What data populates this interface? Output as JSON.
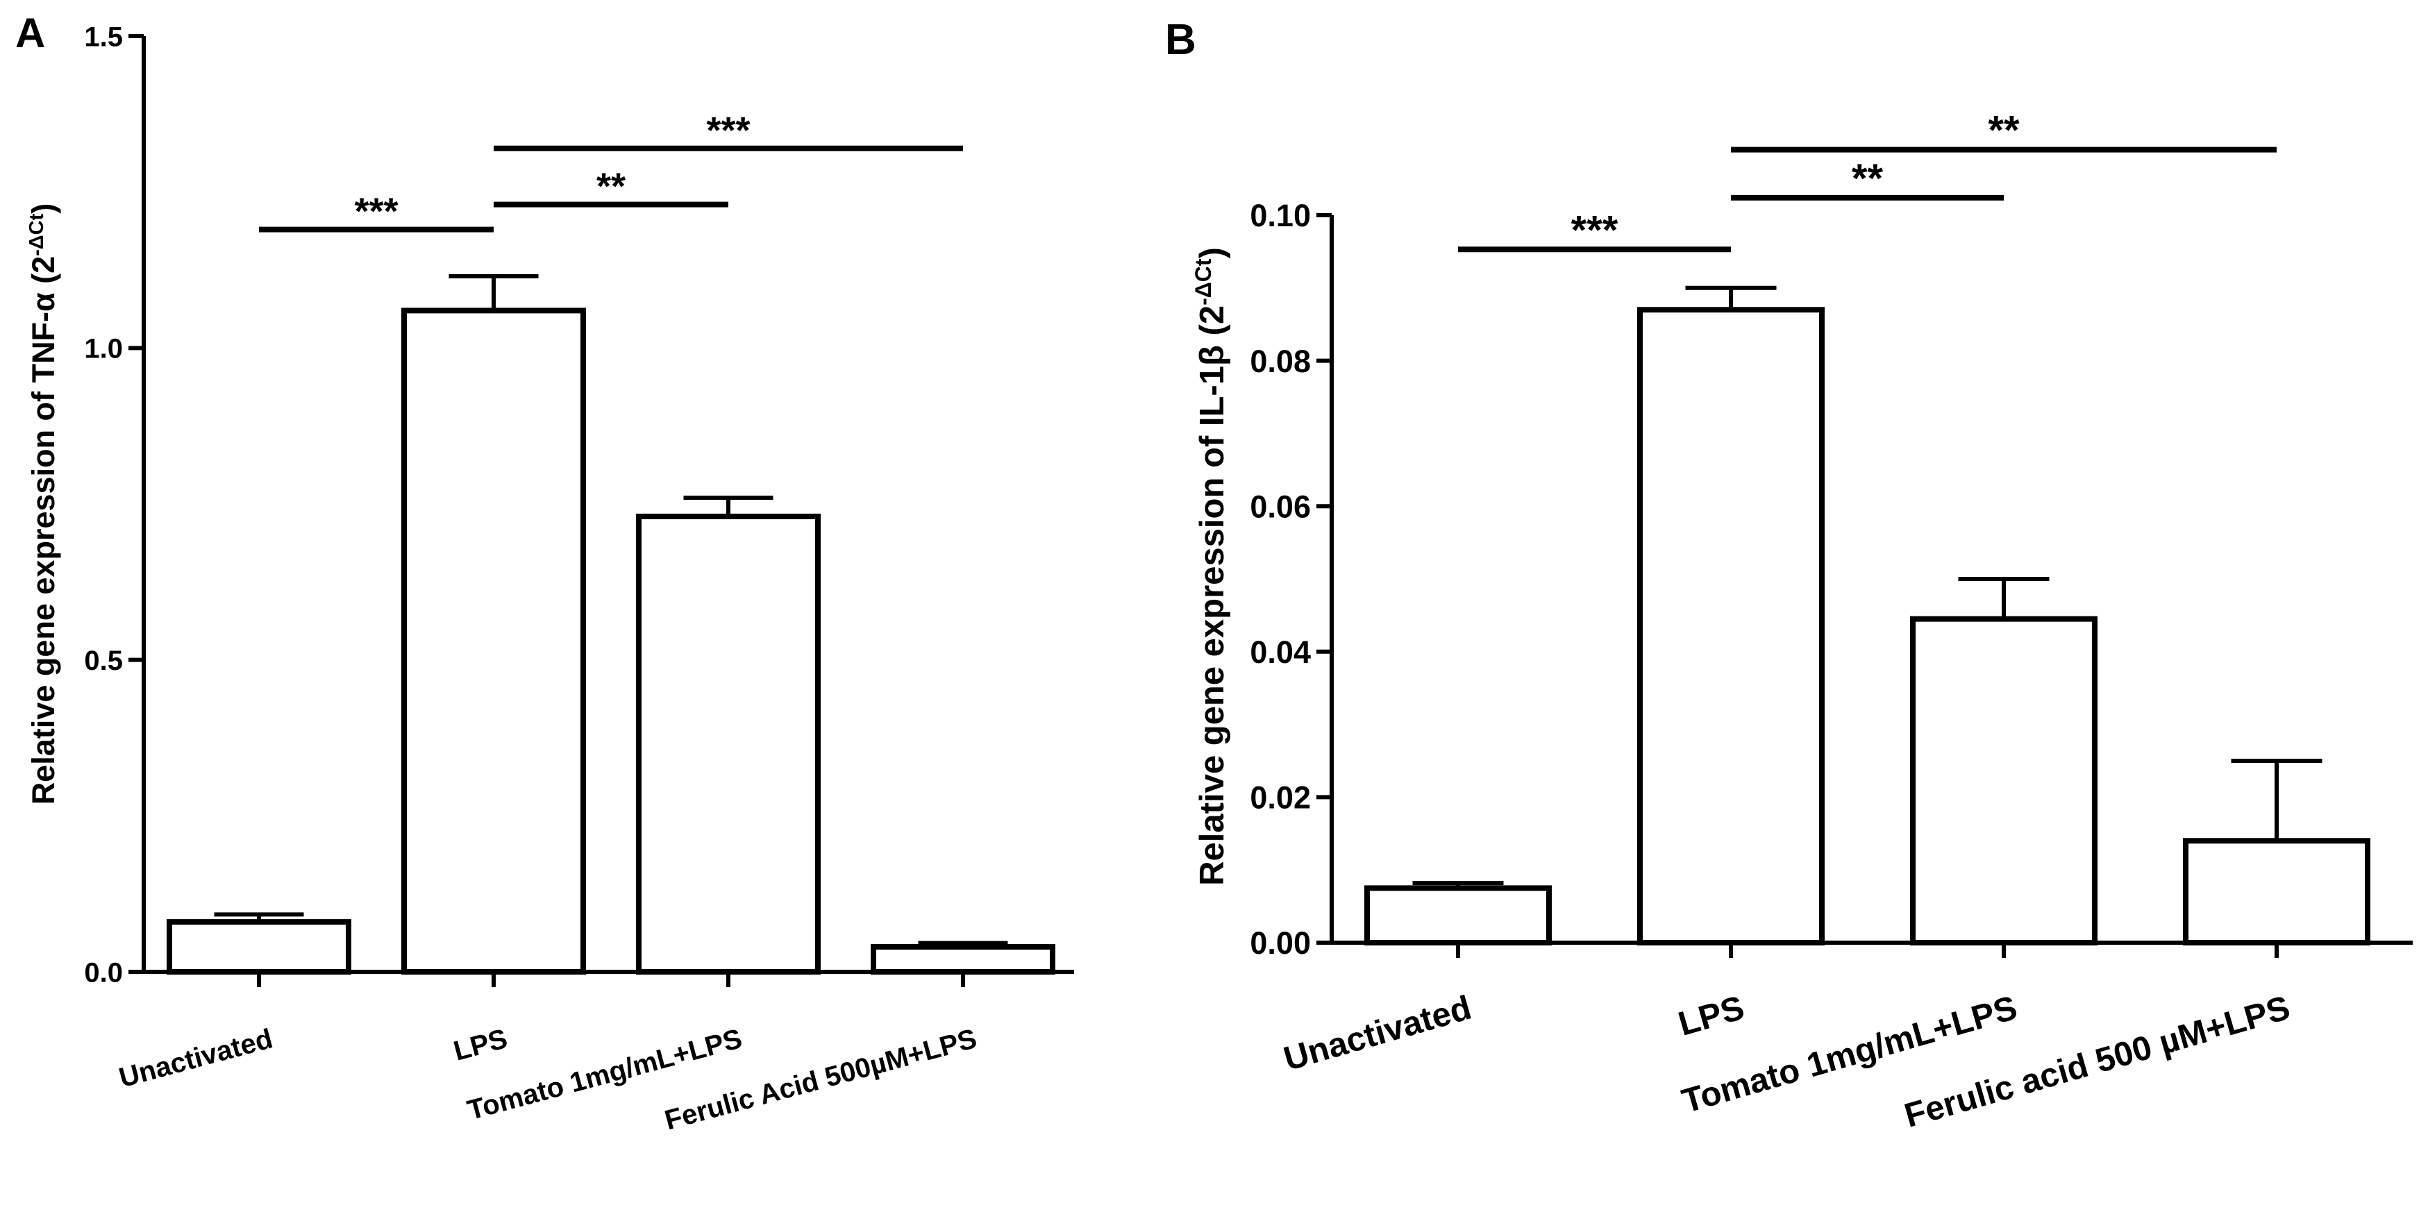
{
  "chart_data": [
    {
      "panel": "A",
      "type": "bar",
      "categories": [
        "Unactivated",
        "LPS",
        "Tomato 1mg/mL+LPS",
        "Ferulic Acid 500µM+LPS"
      ],
      "values": [
        0.08,
        1.06,
        0.73,
        0.04
      ],
      "errors": [
        0.012,
        0.055,
        0.03,
        0.006
      ],
      "ylabel": "Relative gene expression of TNF-α (2",
      "ylabel_sup": "-ΔCt",
      "ylabel_end": ")",
      "ylim": [
        0,
        1.5
      ],
      "yticks": [
        0.0,
        0.5,
        1.0,
        1.5
      ],
      "ytick_labels": [
        "0.0",
        "0.5",
        "1.0",
        "1.5"
      ],
      "significance": [
        {
          "from": 0,
          "to": 1,
          "y": 1.19,
          "label": "***"
        },
        {
          "from": 1,
          "to": 2,
          "y": 1.23,
          "label": "**"
        },
        {
          "from": 1,
          "to": 3,
          "y": 1.32,
          "label": "***"
        }
      ]
    },
    {
      "panel": "B",
      "type": "bar",
      "categories": [
        "Unactivated",
        "LPS",
        "Tomato 1mg/mL+LPS",
        "Ferulic acid 500 µM+LPS"
      ],
      "values": [
        0.0075,
        0.087,
        0.0445,
        0.014
      ],
      "errors": [
        0.0007,
        0.003,
        0.0055,
        0.011
      ],
      "ylabel": "Relative gene expression of IL-1β (2",
      "ylabel_sup": "-ΔCt",
      "ylabel_end": ")",
      "ylim": [
        0,
        0.1
      ],
      "yticks": [
        0.0,
        0.02,
        0.04,
        0.06,
        0.08,
        0.1
      ],
      "ytick_labels": [
        "0.00",
        "0.02",
        "0.04",
        "0.06",
        "0.08",
        "0.10"
      ],
      "significance": [
        {
          "from": 0,
          "to": 1,
          "y": 0.0953,
          "label": "***"
        },
        {
          "from": 1,
          "to": 2,
          "y": 0.1024,
          "label": "**"
        },
        {
          "from": 1,
          "to": 3,
          "y": 0.109,
          "label": "**"
        }
      ]
    }
  ]
}
